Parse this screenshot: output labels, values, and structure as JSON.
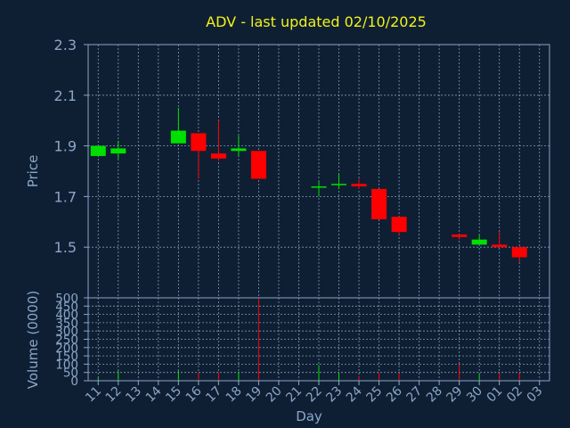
{
  "colors": {
    "background": "#0f1f33",
    "up": "#00e000",
    "down": "#ff0000",
    "axis": "#8aa6c8",
    "title": "#f2f21a"
  },
  "chart_data": [
    {
      "type": "candlestick",
      "title": "ADV - last updated 02/10/2025",
      "ylabel": "Price",
      "ylim": [
        1.3,
        2.3
      ],
      "yticks": [
        "2.3",
        "2.1",
        "1.9",
        "1.7",
        "1.5"
      ],
      "grid": true,
      "categories": [
        "11",
        "12",
        "13",
        "14",
        "15",
        "16",
        "17",
        "18",
        "19",
        "20",
        "21",
        "22",
        "23",
        "24",
        "25",
        "26",
        "27",
        "28",
        "29",
        "30",
        "01",
        "02",
        "03"
      ],
      "candles": [
        {
          "day": "11",
          "open": 1.86,
          "close": 1.9,
          "high": 1.9,
          "low": 1.86
        },
        {
          "day": "12",
          "open": 1.87,
          "close": 1.89,
          "high": 1.92,
          "low": 1.85
        },
        {
          "day": "15",
          "open": 1.91,
          "close": 1.96,
          "high": 2.05,
          "low": 1.91
        },
        {
          "day": "16",
          "open": 1.95,
          "close": 1.88,
          "high": 1.95,
          "low": 1.77
        },
        {
          "day": "17",
          "open": 1.87,
          "close": 1.85,
          "high": 2.0,
          "low": 1.84
        },
        {
          "day": "18",
          "open": 1.88,
          "close": 1.89,
          "high": 1.94,
          "low": 1.86
        },
        {
          "day": "19",
          "open": 1.88,
          "close": 1.77,
          "high": 1.88,
          "low": 1.77
        },
        {
          "day": "22",
          "open": 1.74,
          "close": 1.74,
          "high": 1.76,
          "low": 1.7
        },
        {
          "day": "23",
          "open": 1.75,
          "close": 1.75,
          "high": 1.79,
          "low": 1.73
        },
        {
          "day": "24",
          "open": 1.75,
          "close": 1.74,
          "high": 1.77,
          "low": 1.73
        },
        {
          "day": "25",
          "open": 1.73,
          "close": 1.61,
          "high": 1.73,
          "low": 1.61
        },
        {
          "day": "26",
          "open": 1.62,
          "close": 1.56,
          "high": 1.62,
          "low": 1.55
        },
        {
          "day": "29",
          "open": 1.55,
          "close": 1.54,
          "high": 1.55,
          "low": 1.53
        },
        {
          "day": "30",
          "open": 1.51,
          "close": 1.53,
          "high": 1.55,
          "low": 1.51
        },
        {
          "day": "01",
          "open": 1.51,
          "close": 1.5,
          "high": 1.56,
          "low": 1.5
        },
        {
          "day": "02",
          "open": 1.5,
          "close": 1.46,
          "high": 1.5,
          "low": 1.44
        }
      ]
    },
    {
      "type": "bar",
      "ylabel": "Volume (0000)",
      "xlabel": "Day",
      "ylim": [
        0,
        500
      ],
      "yticks": [
        "500",
        "450",
        "400",
        "350",
        "300",
        "250",
        "200",
        "150",
        "100",
        "50",
        "0"
      ],
      "grid": true,
      "categories": [
        "11",
        "12",
        "13",
        "14",
        "15",
        "16",
        "17",
        "18",
        "19",
        "20",
        "21",
        "22",
        "23",
        "24",
        "25",
        "26",
        "27",
        "28",
        "29",
        "30",
        "01",
        "02",
        "03"
      ],
      "values": [
        {
          "day": "11",
          "value": 20,
          "direction": "up"
        },
        {
          "day": "12",
          "value": 60,
          "direction": "up"
        },
        {
          "day": "15",
          "value": 60,
          "direction": "up"
        },
        {
          "day": "16",
          "value": 50,
          "direction": "down"
        },
        {
          "day": "17",
          "value": 50,
          "direction": "down"
        },
        {
          "day": "18",
          "value": 55,
          "direction": "up"
        },
        {
          "day": "19",
          "value": 500,
          "direction": "down"
        },
        {
          "day": "22",
          "value": 95,
          "direction": "up"
        },
        {
          "day": "23",
          "value": 45,
          "direction": "up"
        },
        {
          "day": "24",
          "value": 30,
          "direction": "down"
        },
        {
          "day": "25",
          "value": 50,
          "direction": "down"
        },
        {
          "day": "26",
          "value": 45,
          "direction": "down"
        },
        {
          "day": "29",
          "value": 100,
          "direction": "down"
        },
        {
          "day": "30",
          "value": 40,
          "direction": "up"
        },
        {
          "day": "01",
          "value": 45,
          "direction": "down"
        },
        {
          "day": "02",
          "value": 45,
          "direction": "down"
        }
      ]
    }
  ]
}
